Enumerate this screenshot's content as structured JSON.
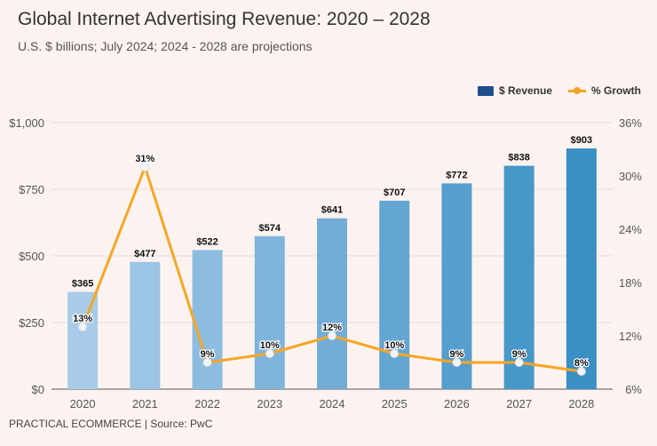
{
  "header": {
    "title": "Global Internet Advertising Revenue: 2020 – 2028",
    "subtitle": "U.S. $ billions; July 2024; 2024 - 2028 are projections"
  },
  "footer": {
    "source": "PRACTICAL ECOMMERCE | Source: PwC"
  },
  "legend": {
    "revenue_label": "$ Revenue",
    "growth_label": "% Growth"
  },
  "colors": {
    "line": "#f5a623",
    "legend_bar": "#1f4e8c",
    "bar_light": "#a9cbea",
    "bar_dark": "#3a8fc4"
  },
  "chart_data": {
    "type": "bar",
    "title": "Global Internet Advertising Revenue: 2020 – 2028",
    "categories": [
      "2020",
      "2021",
      "2022",
      "2023",
      "2024",
      "2025",
      "2026",
      "2027",
      "2028"
    ],
    "series": [
      {
        "name": "$ Revenue",
        "type": "bar",
        "axis": "left",
        "values": [
          365,
          477,
          522,
          574,
          641,
          707,
          772,
          838,
          903
        ],
        "labels": [
          "$365",
          "$477",
          "$522",
          "$574",
          "$641",
          "$707",
          "$772",
          "$838",
          "$903"
        ]
      },
      {
        "name": "% Growth",
        "type": "line",
        "axis": "right",
        "values": [
          13,
          31,
          9,
          10,
          12,
          10,
          9,
          9,
          8
        ],
        "labels": [
          "13%",
          "31%",
          "9%",
          "10%",
          "12%",
          "10%",
          "9%",
          "9%",
          "8%"
        ]
      }
    ],
    "y_left": {
      "ylim": [
        0,
        1000
      ],
      "ticks": [
        0,
        250,
        500,
        750,
        1000
      ],
      "tick_labels": [
        "$0",
        "$250",
        "$500",
        "$750",
        "$1,000"
      ]
    },
    "y_right": {
      "ylim": [
        6,
        36
      ],
      "ticks": [
        6,
        12,
        18,
        24,
        30,
        36
      ],
      "tick_labels": [
        "6%",
        "12%",
        "18%",
        "24%",
        "30%",
        "36%"
      ]
    },
    "legend_position": "top-right",
    "grid": true
  }
}
